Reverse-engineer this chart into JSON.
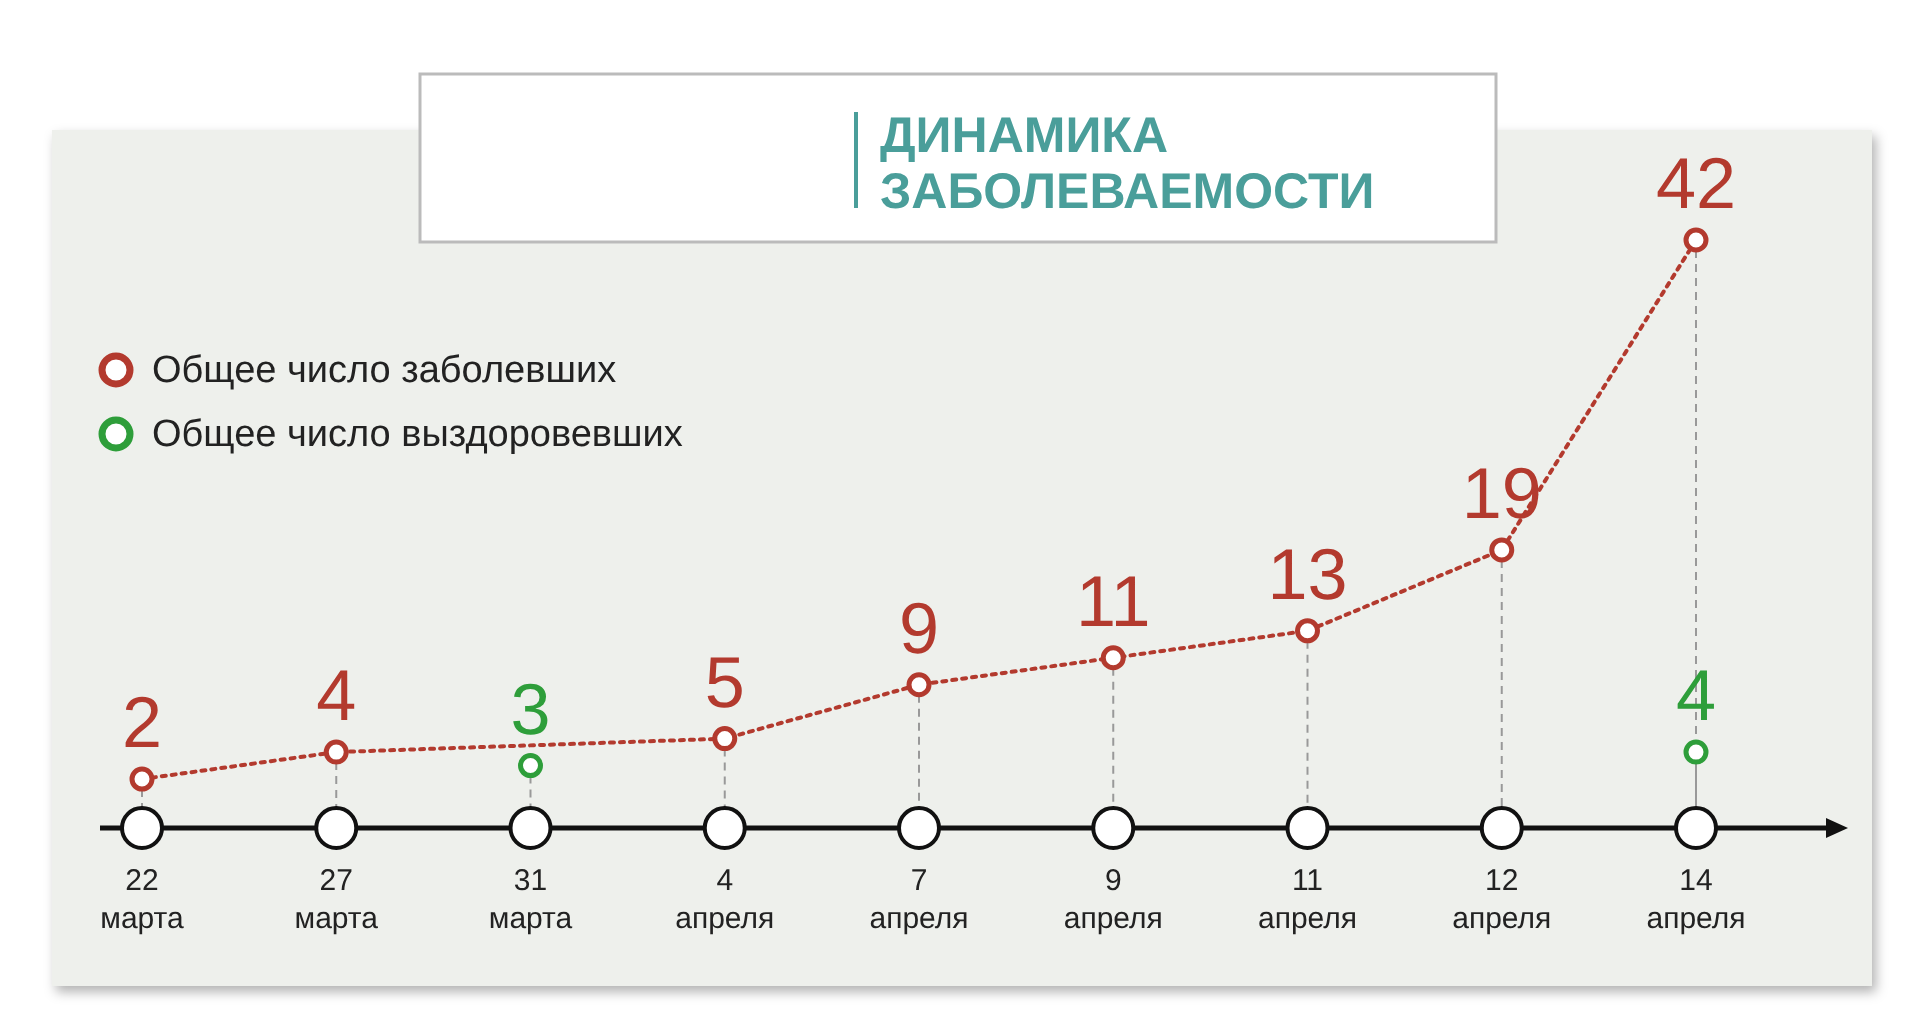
{
  "chart_data": {
    "type": "line",
    "title": "ДИНАМИКА ЗАБОЛЕВАЕМОСТИ",
    "categories": [
      "22 марта",
      "27 марта",
      "31 марта",
      "4 апреля",
      "7 апреля",
      "9 апреля",
      "11 апреля",
      "12 апреля",
      "14 апреля"
    ],
    "series": [
      {
        "name": "Общее число заболевших",
        "color": "#b33a2e",
        "values": [
          2,
          4,
          null,
          5,
          9,
          11,
          13,
          19,
          42
        ],
        "line_style": "dotted"
      },
      {
        "name": "Общее число выздоровевших",
        "color": "#2e9e3a",
        "values": [
          null,
          null,
          3,
          null,
          null,
          null,
          null,
          null,
          4
        ],
        "type": "scatter"
      }
    ],
    "marker": "circle",
    "data_labels": true,
    "legend": "top left"
  }
}
